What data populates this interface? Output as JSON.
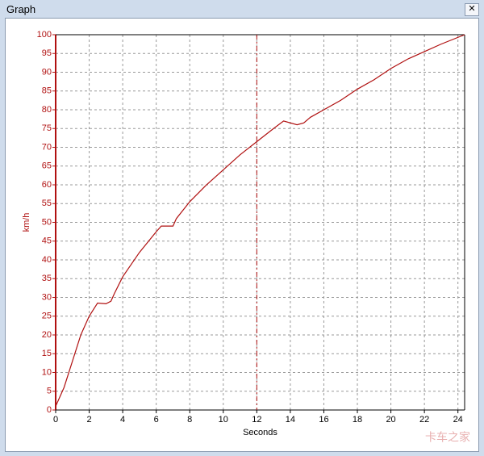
{
  "window_title": "Graph",
  "watermark": "卡车之家",
  "chart_data": {
    "type": "line",
    "x_label": "Seconds",
    "y_label": "km/h",
    "x": [
      0,
      0.5,
      1,
      1.5,
      2,
      2.5,
      3,
      3.3,
      3.5,
      4,
      5,
      6,
      6.3,
      7,
      7.2,
      8,
      9,
      10,
      11,
      12,
      13,
      13.6,
      14.4,
      14.8,
      15.2,
      16,
      17,
      18,
      19,
      20,
      21,
      22,
      23,
      24.4
    ],
    "values": [
      1,
      6,
      13,
      20,
      25,
      28.5,
      28.3,
      29,
      31,
      35.5,
      42,
      47.5,
      49,
      49,
      51,
      55.5,
      60,
      64,
      68,
      71.5,
      75,
      77,
      76,
      76.5,
      78,
      80,
      82.5,
      85.5,
      88,
      91,
      93.5,
      95.5,
      97.5,
      100
    ],
    "color": "#b01010",
    "xlim": [
      0,
      24.4
    ],
    "xticks": [
      0,
      2,
      4,
      6,
      8,
      10,
      12,
      14,
      16,
      18,
      20,
      22,
      24
    ],
    "ylim": [
      0,
      100
    ],
    "yticks": [
      0,
      5,
      10,
      15,
      20,
      25,
      30,
      35,
      40,
      45,
      50,
      55,
      60,
      65,
      70,
      75,
      80,
      85,
      90,
      95,
      100
    ],
    "grid": true,
    "cursor_x": 12
  }
}
